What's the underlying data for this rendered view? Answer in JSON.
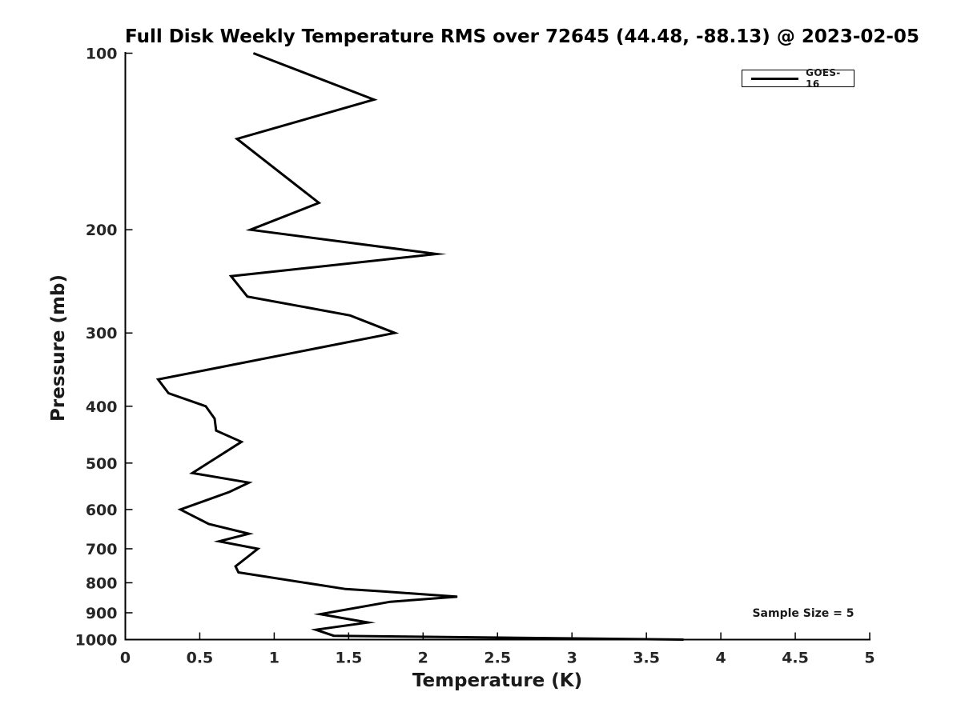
{
  "chart_data": {
    "type": "line",
    "title": "Full Disk Weekly Temperature RMS over 72645 (44.48, -88.13) @ 2023-02-05",
    "xlabel": "Temperature (K)",
    "ylabel": "Pressure (mb)",
    "xlim": [
      0,
      5
    ],
    "ylim": [
      100,
      1000
    ],
    "y_scale": "log",
    "y_inverted": true,
    "grid": false,
    "legend_position": "top-right",
    "x_tick_values": [
      0,
      0.5,
      1,
      1.5,
      2,
      2.5,
      3,
      3.5,
      4,
      4.5,
      5
    ],
    "x_tick_labels": [
      "0",
      "0.5",
      "1",
      "1.5",
      "2",
      "2.5",
      "3",
      "3.5",
      "4",
      "4.5",
      "5"
    ],
    "y_tick_values": [
      100,
      200,
      300,
      400,
      500,
      600,
      700,
      800,
      900,
      1000
    ],
    "y_tick_labels": [
      "100",
      "200",
      "300",
      "400",
      "500",
      "600",
      "700",
      "800",
      "900",
      "1000"
    ],
    "series": [
      {
        "name": "GOES-16",
        "color": "#000000",
        "points": [
          [
            0.86,
            100
          ],
          [
            1.67,
            120
          ],
          [
            0.75,
            140
          ],
          [
            1.3,
            180
          ],
          [
            0.84,
            200
          ],
          [
            2.09,
            220
          ],
          [
            0.71,
            240
          ],
          [
            0.82,
            260
          ],
          [
            1.51,
            280
          ],
          [
            1.81,
            300
          ],
          [
            0.22,
            360
          ],
          [
            0.29,
            380
          ],
          [
            0.54,
            400
          ],
          [
            0.6,
            420
          ],
          [
            0.61,
            440
          ],
          [
            0.78,
            460
          ],
          [
            0.45,
            520
          ],
          [
            0.83,
            540
          ],
          [
            0.7,
            560
          ],
          [
            0.37,
            600
          ],
          [
            0.56,
            635
          ],
          [
            0.83,
            660
          ],
          [
            0.63,
            680
          ],
          [
            0.89,
            700
          ],
          [
            0.74,
            750
          ],
          [
            0.76,
            768
          ],
          [
            1.48,
            820
          ],
          [
            1.74,
            828
          ],
          [
            2.23,
            845
          ],
          [
            1.78,
            862
          ],
          [
            1.31,
            905
          ],
          [
            1.63,
            935
          ],
          [
            1.28,
            962
          ],
          [
            1.4,
            985
          ],
          [
            3.75,
            1000
          ]
        ]
      }
    ]
  },
  "annotations": {
    "sample_size": "Sample Size = 5"
  },
  "colors": {
    "line": "#000000",
    "axis": "#000000",
    "tick_label": "#262626",
    "title": "#000000",
    "background": "#ffffff"
  }
}
